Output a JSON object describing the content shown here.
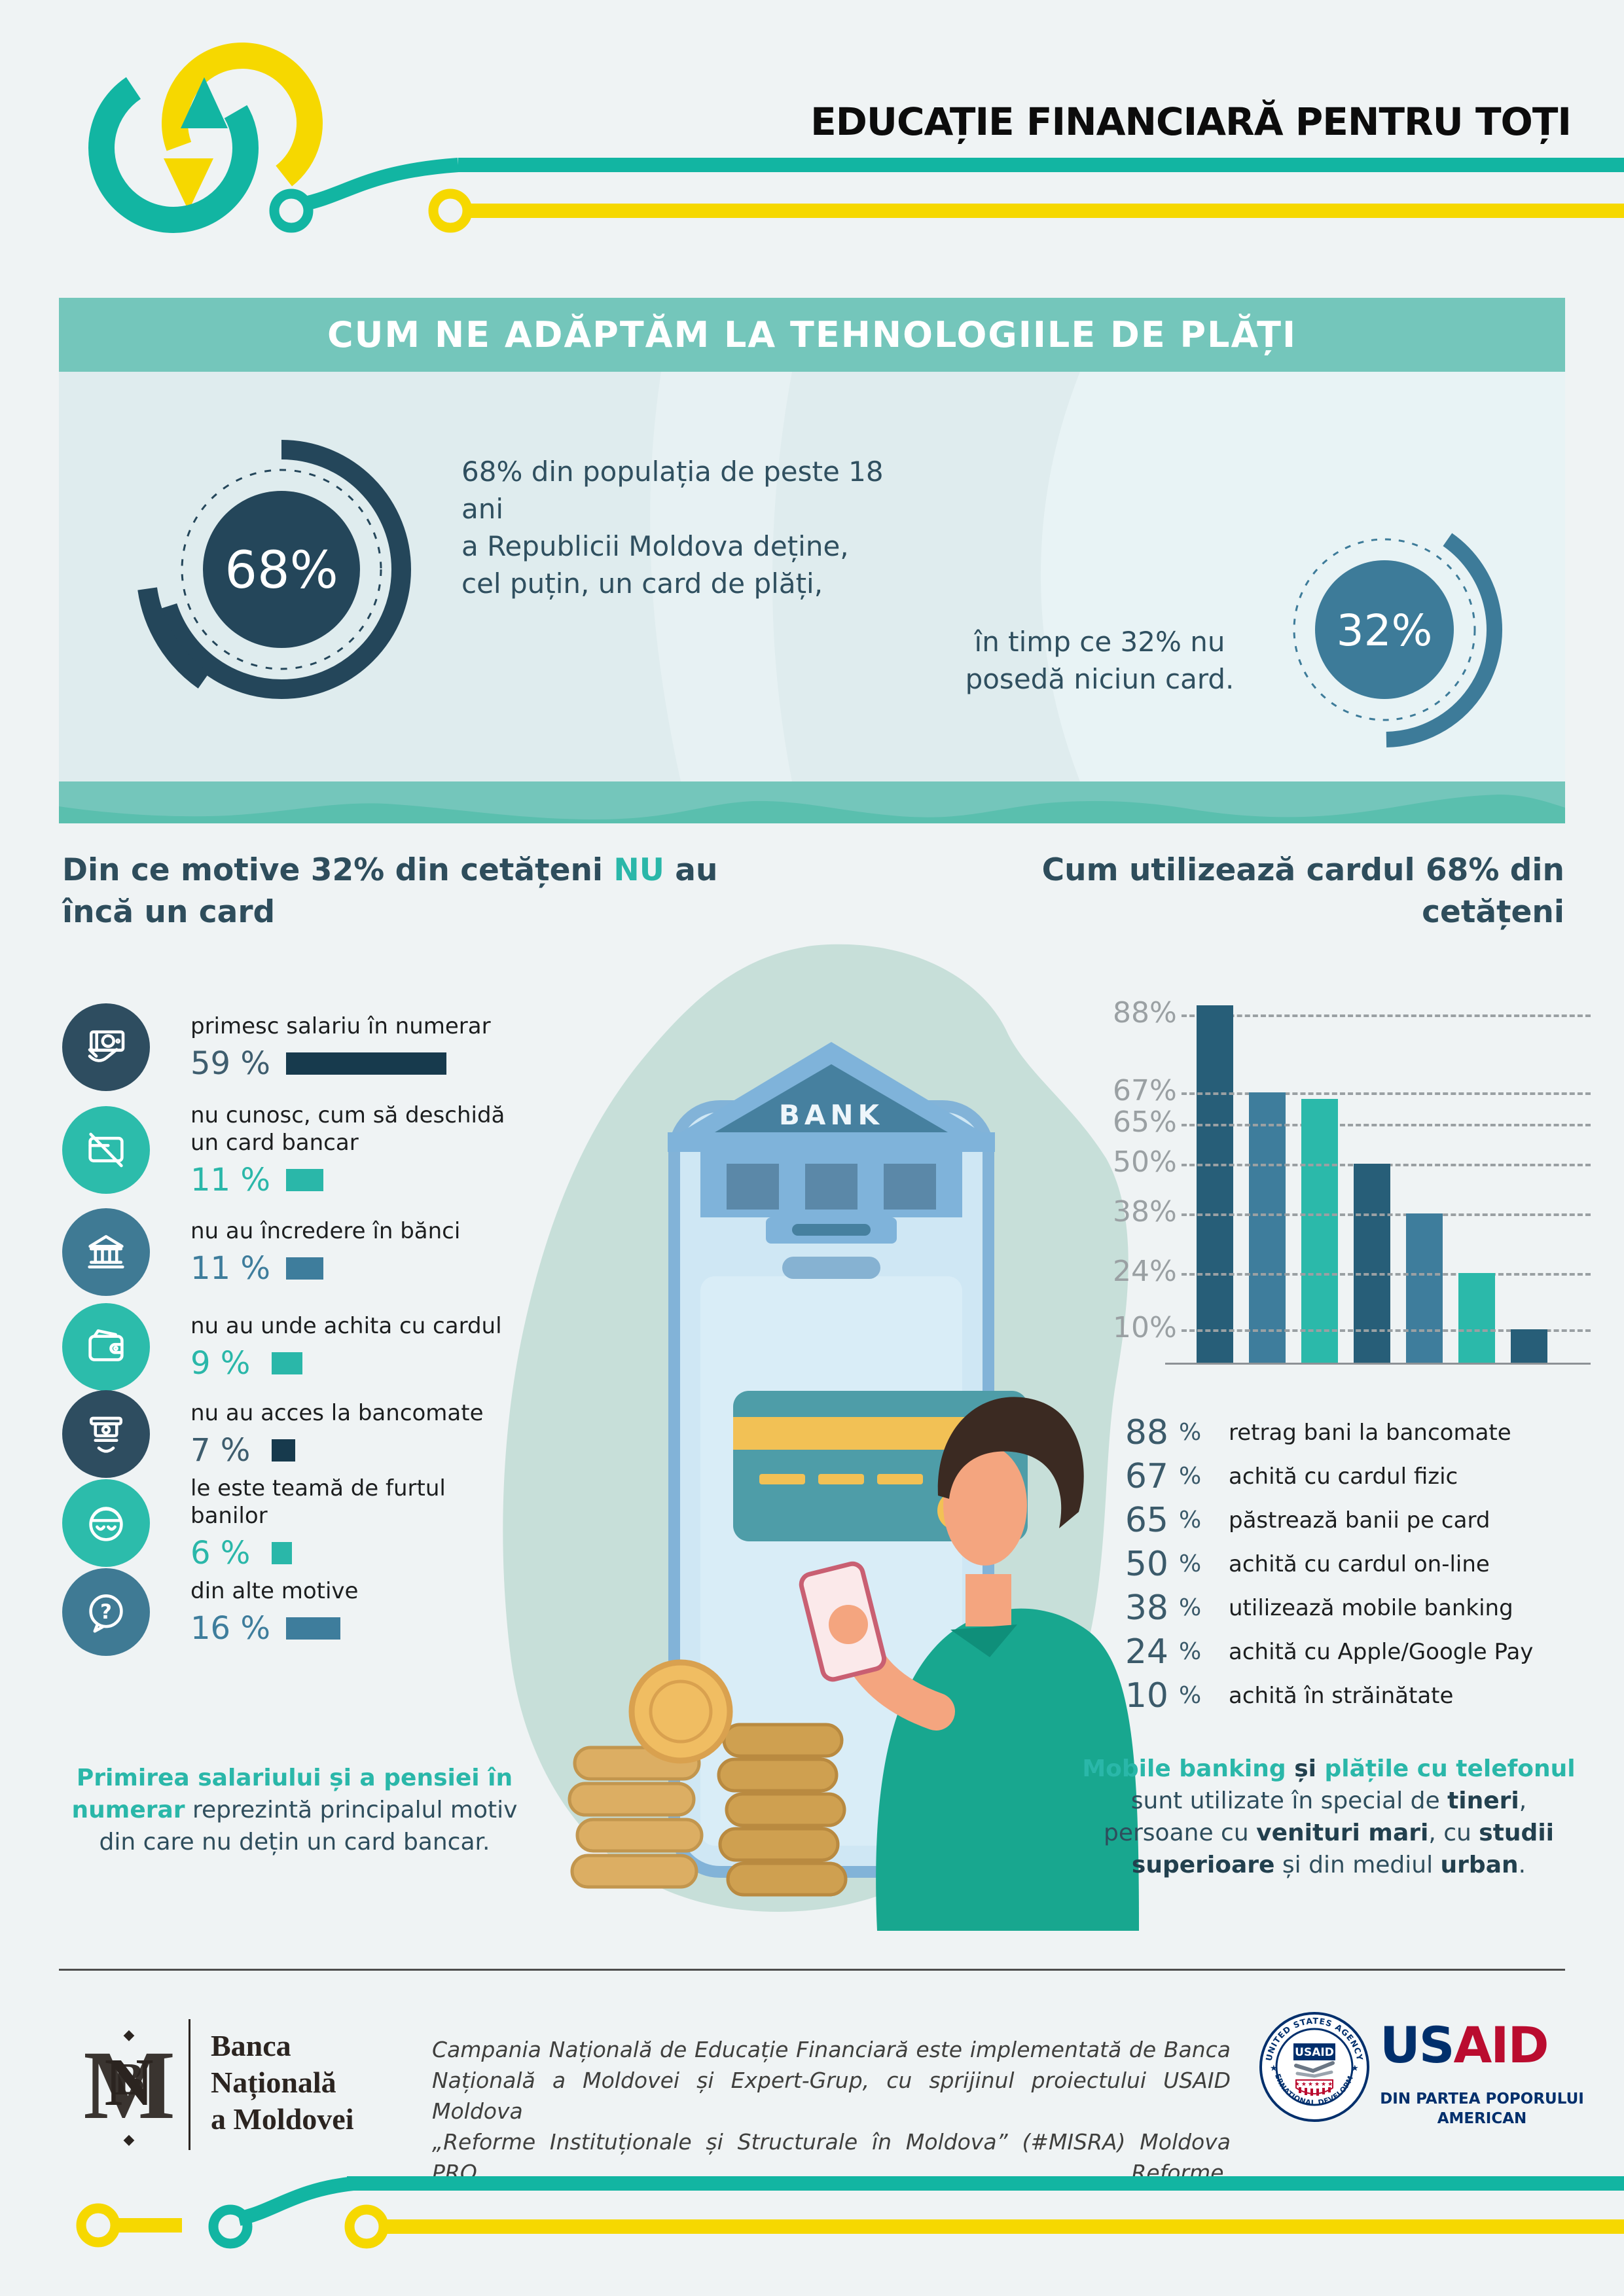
{
  "header": {
    "title": "EDUCAȚIE FINANCIARĂ PENTRU TOȚI"
  },
  "banner": {
    "title": "CUM NE ADĂPTĂM LA TEHNOLOGIILE DE PLĂȚI"
  },
  "hero": {
    "donut_left": {
      "value": "68%"
    },
    "donut_right": {
      "value": "32%"
    },
    "text_left_lines": [
      "68% din populația de peste 18 ani",
      "a Republicii Moldova deține,",
      "cel puțin, un card de plăți,"
    ],
    "text_right_lines": [
      "în timp ce 32% nu",
      "posedă niciun card."
    ]
  },
  "left_section": {
    "heading_line1": [
      {
        "t": "Din ce motive 32% din cetățeni ",
        "s": ""
      },
      {
        "t": "NU",
        "s": "teal"
      },
      {
        "t": " au",
        "s": ""
      }
    ],
    "heading_line2": "încă un card",
    "items": [
      {
        "label": "primesc salariu în numerar",
        "value": "59 %",
        "pct": 59,
        "icon": "cash-in-hand",
        "color": "dark"
      },
      {
        "label": "nu cunosc, cum să deschidă\nun card bancar",
        "value": "11 %",
        "pct": 11,
        "icon": "no-card",
        "color": "teal"
      },
      {
        "label": "nu au încredere în bănci",
        "value": "11 %",
        "pct": 11,
        "icon": "bank",
        "color": "steel"
      },
      {
        "label": "nu au unde achita cu cardul",
        "value": "9 %",
        "pct": 9,
        "icon": "wallet",
        "color": "teal"
      },
      {
        "label": "nu au acces la bancomate",
        "value": "7 %",
        "pct": 7,
        "icon": "atm",
        "color": "dark"
      },
      {
        "label": "le este teamă de furtul\nbanilor",
        "value": "6 %",
        "pct": 6,
        "icon": "thief",
        "color": "teal"
      },
      {
        "label": "din alte motive",
        "value": "16 %",
        "pct": 16,
        "icon": "question",
        "color": "steel"
      }
    ],
    "note_lines": [
      [
        {
          "t": "Primirea salariului și a pensiei în",
          "s": "tb"
        }
      ],
      [
        {
          "t": "numerar",
          "s": "tb"
        },
        {
          "t": " reprezintă principalul motiv",
          "s": ""
        }
      ],
      [
        {
          "t": "din care nu dețin un card bancar.",
          "s": ""
        }
      ]
    ]
  },
  "right_section": {
    "heading_line1": "Cum utilizează cardul 68% din",
    "heading_line2": "cetățeni",
    "chart_ticks": [
      "88%",
      "67%",
      "65%",
      "50%",
      "38%",
      "24%",
      "10%"
    ],
    "legend": [
      {
        "value": "88",
        "unit": "%",
        "label": "retrag bani la bancomate"
      },
      {
        "value": "67",
        "unit": "%",
        "label": "achită cu cardul fizic"
      },
      {
        "value": "65",
        "unit": "%",
        "label": "păstrează banii pe card"
      },
      {
        "value": "50",
        "unit": "%",
        "label": "achită cu cardul on-line"
      },
      {
        "value": "38",
        "unit": "%",
        "label": "utilizează mobile banking"
      },
      {
        "value": "24",
        "unit": "%",
        "label": "achită cu Apple/Google Pay"
      },
      {
        "value": "10",
        "unit": "%",
        "label": "achită în străinătate"
      }
    ],
    "note_lines": [
      [
        {
          "t": "Mobile banking",
          "s": "tb"
        },
        {
          "t": " și ",
          "s": "b"
        },
        {
          "t": "plățile cu telefonul",
          "s": "tb"
        }
      ],
      [
        {
          "t": "sunt utilizate în special de ",
          "s": ""
        },
        {
          "t": "tineri",
          "s": "b"
        },
        {
          "t": ",",
          "s": ""
        }
      ],
      [
        {
          "t": "persoane cu ",
          "s": ""
        },
        {
          "t": "venituri mari",
          "s": "b"
        },
        {
          "t": ", cu ",
          "s": ""
        },
        {
          "t": "studii",
          "s": "b"
        }
      ],
      [
        {
          "t": "superioare",
          "s": "b"
        },
        {
          "t": " și din mediul ",
          "s": ""
        },
        {
          "t": "urban",
          "s": "b"
        },
        {
          "t": ".",
          "s": ""
        }
      ]
    ]
  },
  "illustration": {
    "bank_label": "BANK"
  },
  "footer": {
    "bnm": {
      "monogram": "BNM",
      "line1": "Banca",
      "line2": "Națională",
      "line3": "a Moldovei"
    },
    "campaign_lines": [
      "Campania Națională de Educație Financiară este implementată de Banca",
      "Națională a Moldovei și Expert-Grup, cu sprijinul proiectului USAID Moldova",
      "„Reforme Instituționale și Structurale în Moldova” (#MISRA) Moldova PRO Reforme."
    ],
    "usaid": {
      "seal_top": "UNITED STATES AGENCY",
      "seal_bottom": "INTERNATIONAL DEVELOPMENT",
      "seal_label": "USAID",
      "wordmark_us": "US",
      "wordmark_aid": "AID",
      "tagline1": "DIN PARTEA POPORULUI",
      "tagline2": "AMERICAN"
    }
  },
  "colors": {
    "teal": "#2ab7a9",
    "yellow": "#f6d800",
    "dark": "#173a4d",
    "steel": "#3e7d9c",
    "banner": "#74c6bb",
    "chart_dark": "#275e78"
  },
  "chart_data": [
    {
      "type": "pie",
      "title": "CUM NE ADĂPTĂM LA TEHNOLOGIILE DE PLĂȚI",
      "labels": [
        "dețin cel puțin un card de plăți (populația 18+)",
        "nu posedă niciun card"
      ],
      "values": [
        68,
        32
      ],
      "annotations": [
        "68% din populația de peste 18 ani a Republicii Moldova deține, cel puțin, un card de plăți,",
        "în timp ce 32% nu posedă niciun card."
      ]
    },
    {
      "type": "bar",
      "title": "Cum utilizează cardul 68% din cetățeni",
      "categories": [
        "retrag bani la bancomate",
        "achită cu cardul fizic",
        "păstrează banii pe card",
        "achită cu cardul on-line",
        "utilizează mobile banking",
        "achită cu Apple/Google Pay",
        "achită în străinătate"
      ],
      "values": [
        88,
        67,
        65,
        50,
        38,
        24,
        10
      ],
      "xlabel": "",
      "ylabel": "",
      "ylim": [
        0,
        100
      ],
      "grid": "dashed horizontal at each value",
      "bar_colors": [
        "#275e78",
        "#3e7d9c",
        "#2bb9aa",
        "#275e78",
        "#3e7d9c",
        "#2bb9aa",
        "#275e78"
      ],
      "legend_position": "below chart as value list"
    },
    {
      "type": "bar",
      "title": "Din ce motive 32% din cetățeni NU au încă un card",
      "categories": [
        "primesc salariu în numerar",
        "nu cunosc, cum să deschidă un card bancar",
        "nu au încredere în bănci",
        "nu au unde achita cu cardul",
        "nu au acces la bancomate",
        "le este teamă de furtul banilor",
        "din alte motive"
      ],
      "values": [
        59,
        11,
        11,
        9,
        7,
        6,
        16
      ],
      "orientation": "horizontal"
    }
  ]
}
